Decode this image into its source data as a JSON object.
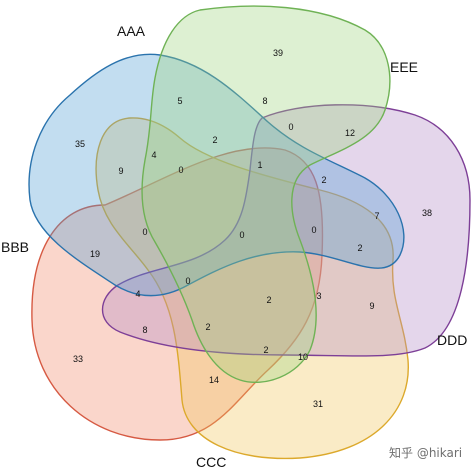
{
  "diagram": {
    "type": "venn-5-set",
    "sets": [
      {
        "id": "AAA",
        "label": "AAA",
        "fill": "#4f9fd4",
        "stroke": "#2a73ad"
      },
      {
        "id": "BBB",
        "label": "BBB",
        "fill": "#f08a6a",
        "stroke": "#d65a43"
      },
      {
        "id": "CCC",
        "label": "CCC",
        "fill": "#f2c75c",
        "stroke": "#dca92c"
      },
      {
        "id": "DDD",
        "label": "DDD",
        "fill": "#b18ac6",
        "stroke": "#7d3f97"
      },
      {
        "id": "EEE",
        "label": "EEE",
        "fill": "#9fd47d",
        "stroke": "#6fb255"
      }
    ],
    "regions": [
      {
        "sets": [
          "EEE"
        ],
        "count": "39"
      },
      {
        "sets": [
          "AAA"
        ],
        "count": "35"
      },
      {
        "sets": [
          "DDD"
        ],
        "count": "38"
      },
      {
        "sets": [
          "BBB"
        ],
        "count": "33"
      },
      {
        "sets": [
          "CCC"
        ],
        "count": "31"
      },
      {
        "sets": [
          "AAA",
          "EEE"
        ],
        "count": "5"
      },
      {
        "sets": [
          "BBB",
          "EEE"
        ],
        "count": "8"
      },
      {
        "sets": [
          "DDD",
          "EEE"
        ],
        "count": "12"
      },
      {
        "sets": [
          "AAA",
          "BBB"
        ],
        "count": "9"
      },
      {
        "sets": [
          "AAA",
          "BBB",
          "EEE"
        ],
        "count": "4"
      },
      {
        "sets": [
          "AAA",
          "BBB",
          "DDD",
          "EEE"
        ],
        "count": "2"
      },
      {
        "sets": [
          "BBB",
          "DDD",
          "EEE"
        ],
        "count": "0"
      },
      {
        "sets": [
          "BBB",
          "CCC",
          "DDD",
          "EEE"
        ],
        "count": "1"
      },
      {
        "sets": [
          "AAA",
          "DDD",
          "EEE"
        ],
        "count": "2"
      },
      {
        "sets": [
          "AAA",
          "DDD"
        ],
        "count": "7"
      },
      {
        "sets": [
          "AAA",
          "BBB",
          "CCC",
          "EEE"
        ],
        "count": "0"
      },
      {
        "sets": [
          "AAA",
          "BBB",
          "CCC"
        ],
        "count": "0"
      },
      {
        "sets": [
          "AAA",
          "BBB",
          "CCC",
          "DDD",
          "EEE"
        ],
        "count": "0"
      },
      {
        "sets": [
          "AAA",
          "CCC",
          "DDD",
          "EEE"
        ],
        "count": "0"
      },
      {
        "sets": [
          "AAA",
          "CCC",
          "DDD"
        ],
        "count": "2"
      },
      {
        "sets": [
          "AAA",
          "CCC"
        ],
        "count": "19"
      },
      {
        "sets": [
          "CCC",
          "DDD"
        ],
        "count": "9"
      },
      {
        "sets": [
          "AAA",
          "BBB",
          "DDD"
        ],
        "count": "4"
      },
      {
        "sets": [
          "AAA",
          "BBB",
          "CCC",
          "DDD"
        ],
        "count": "0"
      },
      {
        "sets": [
          "BBB",
          "CCC",
          "DDD"
        ],
        "count": "2"
      },
      {
        "sets": [
          "CCC",
          "DDD",
          "EEE"
        ],
        "count": "3"
      },
      {
        "sets": [
          "BBB",
          "DDD"
        ],
        "count": "8"
      },
      {
        "sets": [
          "BBB",
          "CCC",
          "DDD"
        ],
        "count": "2"
      },
      {
        "sets": [
          "BBB",
          "CCC",
          "EEE"
        ],
        "count": "2"
      },
      {
        "sets": [
          "CCC",
          "EEE"
        ],
        "count": "10"
      },
      {
        "sets": [
          "BBB",
          "CCC"
        ],
        "count": "14"
      }
    ]
  },
  "watermark": "知乎 @hikari"
}
